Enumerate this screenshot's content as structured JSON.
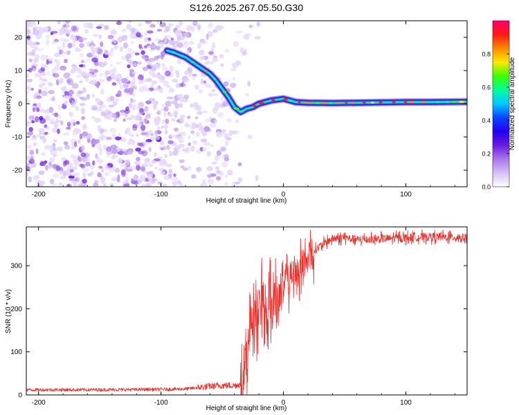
{
  "figure": {
    "title": "S126.2025.267.05.50.G30"
  },
  "chart_data": [
    {
      "type": "heatmap",
      "xlabel": "Height of straight line (km)",
      "ylabel": "Frequency (Hz)",
      "xlim": [
        -210,
        150
      ],
      "ylim": [
        -25,
        25
      ],
      "xticks": [
        -200,
        -100,
        0,
        100
      ],
      "yticks": [
        -20,
        -10,
        0,
        10,
        20
      ],
      "colorbar": {
        "label": "Normalized spectral amplitude",
        "range": [
          0,
          1
        ],
        "ticks": [
          0,
          0.2,
          0.4,
          0.6,
          0.8
        ],
        "colors": [
          "#ffffff",
          "#d7bff5",
          "#a877ec",
          "#6a1be0",
          "#2400f0",
          "#0a45ff",
          "#00c8ff",
          "#00ff9a",
          "#3aff00",
          "#ffe800",
          "#ff8a00",
          "#ff1a10",
          "#ff0070"
        ]
      },
      "signal_trace": {
        "x": [
          -95,
          -90,
          -80,
          -70,
          -60,
          -55,
          -50,
          -45,
          -40,
          -35,
          -30,
          -25,
          -20,
          -10,
          0,
          10,
          20,
          40,
          60,
          80,
          100,
          120,
          150
        ],
        "frequency": [
          16,
          15.5,
          14,
          11.5,
          9,
          7,
          4.5,
          2,
          -1,
          -2.5,
          -1.5,
          -1,
          0,
          1,
          1.5,
          0.5,
          0.3,
          0.2,
          0.3,
          0.4,
          0.5,
          0.5,
          0.6
        ]
      },
      "noise_region": [
        -210,
        -30
      ]
    },
    {
      "type": "line",
      "xlabel": "Height of straight line (km)",
      "ylabel": "SNR (10 * v/v)",
      "xlim": [
        -210,
        150
      ],
      "ylim": [
        0,
        390
      ],
      "xticks": [
        -200,
        -100,
        0,
        100
      ],
      "yticks": [
        0,
        100,
        200,
        300
      ],
      "series": [
        {
          "color": "#e8312a",
          "x": [
            -210,
            -150,
            -100,
            -80,
            -60,
            -50,
            -40,
            -35,
            -30,
            -28,
            -26,
            -24,
            -22,
            -20,
            -15,
            -10,
            -5,
            0,
            5,
            10,
            15,
            20,
            25,
            30,
            35,
            40,
            50,
            60,
            80,
            100,
            120,
            150
          ],
          "values": [
            12,
            12,
            13,
            14,
            20,
            22,
            22,
            25,
            70,
            160,
            200,
            210,
            190,
            205,
            215,
            230,
            245,
            255,
            270,
            280,
            300,
            315,
            335,
            345,
            355,
            362,
            365,
            360,
            362,
            365,
            367,
            365
          ]
        }
      ]
    }
  ]
}
